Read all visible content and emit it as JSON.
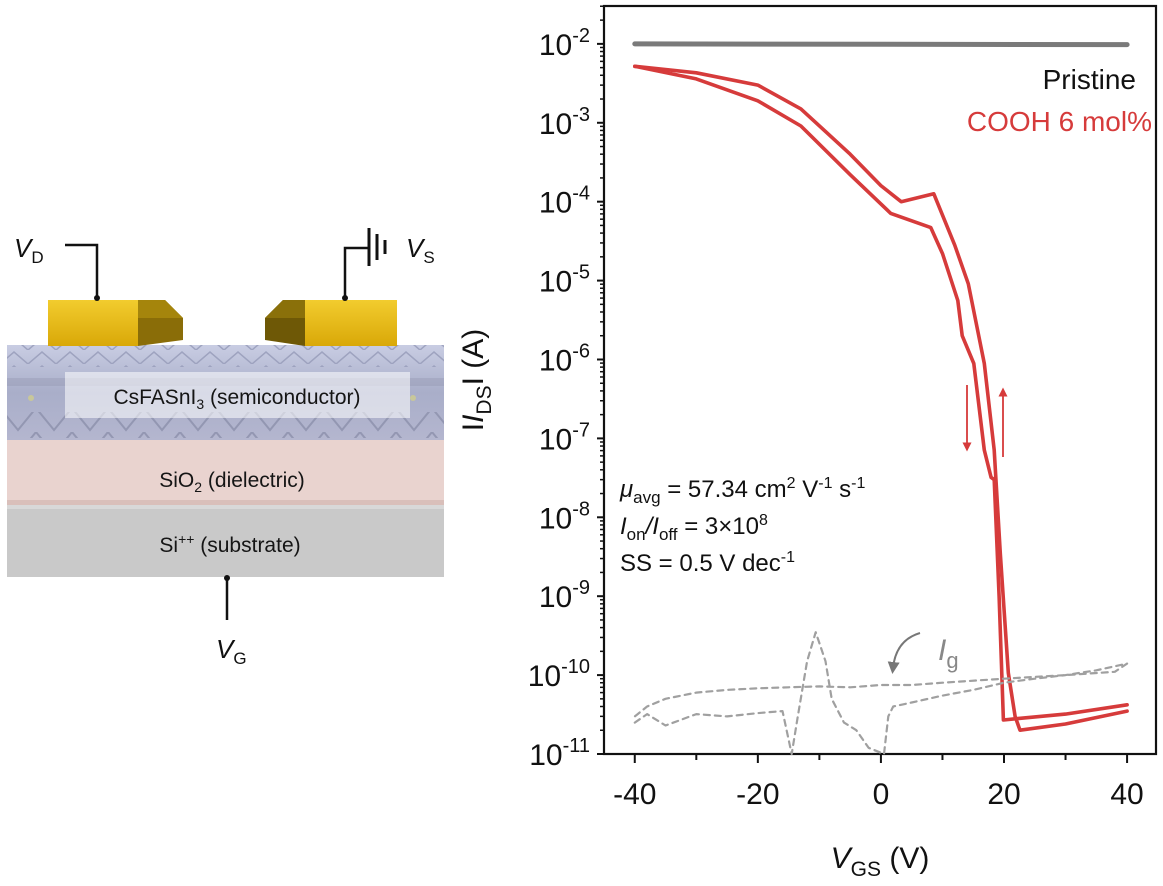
{
  "device_diagram": {
    "terminals": {
      "drain": {
        "symbol": "V",
        "subscript": "D"
      },
      "source": {
        "symbol": "V",
        "subscript": "S"
      },
      "gate": {
        "symbol": "V",
        "subscript": "G"
      }
    },
    "layers": [
      {
        "name": "CsFASnI",
        "subscript": "3",
        "suffix": " (semiconductor)",
        "color": "#b9bdd6"
      },
      {
        "name": "SiO",
        "subscript": "2",
        "suffix": " (dielectric)",
        "color": "#e9d3cf"
      },
      {
        "name": "Si",
        "superscript": "++",
        "suffix": " (substrate)",
        "color": "#c9c9c9"
      }
    ],
    "electrode_color": "#e0b50f"
  },
  "chart_data": {
    "type": "line",
    "title": "",
    "xlabel": {
      "symbol": "V",
      "subscript": "GS",
      "unit": " (V)"
    },
    "ylabel": {
      "prefix": "I",
      "symbol": "I",
      "subscript": "DS",
      "suffix": "I (A)"
    },
    "xlim": [
      -45,
      44.7
    ],
    "ylim_log10": [
      -11,
      -1.52
    ],
    "yscale": "log",
    "grid": false,
    "x_ticks": [
      -40,
      -20,
      0,
      20,
      40
    ],
    "x_tick_labels": [
      "-40",
      "-20",
      "0",
      "20",
      "40"
    ],
    "y_ticks_log10": [
      -2,
      -3,
      -4,
      -5,
      -6,
      -7,
      -8,
      -9,
      -10,
      -11
    ],
    "y_tick_labels": [
      {
        "base": "10",
        "exp": "-2"
      },
      {
        "base": "10",
        "exp": "-3"
      },
      {
        "base": "10",
        "exp": "-4"
      },
      {
        "base": "10",
        "exp": "-5"
      },
      {
        "base": "10",
        "exp": "-6"
      },
      {
        "base": "10",
        "exp": "-7"
      },
      {
        "base": "10",
        "exp": "-8"
      },
      {
        "base": "10",
        "exp": "-9"
      },
      {
        "base": "10",
        "exp": "-10"
      },
      {
        "base": "10",
        "exp": "-11"
      }
    ],
    "legend": {
      "placement": "top-right",
      "entries": [
        {
          "label": "Pristine",
          "color": "#111111"
        },
        {
          "label": "COOH 6 mol%",
          "color": "#d63b3b"
        }
      ]
    },
    "series": [
      {
        "name": "Pristine",
        "color": "#7a7a7a",
        "style": "solid",
        "x": [
          -40,
          40
        ],
        "y": [
          0.01,
          0.0098
        ]
      },
      {
        "name": "COOH 6 mol% (forward sweep)",
        "color": "#d63b3b",
        "style": "solid",
        "x": [
          -40,
          -30,
          -20,
          -13,
          -5,
          0,
          3.3,
          8.6,
          12,
          14.2,
          16.8,
          18.4,
          19.4,
          20.7,
          21.8,
          22.6,
          30,
          40
        ],
        "y": [
          0.0052,
          0.0043,
          0.003,
          0.0015,
          0.0004,
          0.00016,
          0.0001,
          0.000126,
          2.8e-05,
          9.1e-06,
          8.9e-07,
          7.1e-08,
          3.5e-09,
          1.07e-10,
          3e-11,
          2e-11,
          2.4e-11,
          3.5e-11
        ]
      },
      {
        "name": "COOH 6 mol% (reverse sweep)",
        "color": "#d63b3b",
        "style": "solid",
        "x": [
          40,
          30,
          22,
          19.9,
          19.2,
          18.4,
          17.9,
          16.8,
          15.1,
          13.2,
          12.5,
          10,
          8.1,
          1.6,
          -5,
          -13,
          -20,
          -30,
          -40
        ],
        "y": [
          4.2e-11,
          3.2e-11,
          2.8e-11,
          2.7e-11,
          1e-09,
          3e-08,
          3.2e-08,
          7.1e-08,
          8.9e-07,
          2e-06,
          5.6e-06,
          2.2e-05,
          4.7e-05,
          7.1e-05,
          0.00022,
          0.00091,
          0.0019,
          0.0036,
          0.0052
        ]
      },
      {
        "name": "Ig",
        "color": "#a0a0a0",
        "style": "dashed",
        "x": [
          -40,
          -38,
          -35,
          -30,
          -25,
          -20,
          -16,
          -14.5,
          -13.5,
          -12,
          -10.6,
          -9,
          -8,
          -6,
          -4,
          -2,
          0.5,
          1.2,
          2,
          5,
          10,
          15,
          20,
          25,
          30,
          35,
          40,
          38,
          30,
          20,
          10,
          5,
          0,
          -5,
          -10,
          -15,
          -20,
          -25,
          -30,
          -35,
          -38,
          -40
        ],
        "y": [
          2.5e-11,
          3.2e-11,
          2.3e-11,
          3.2e-11,
          3e-11,
          3.3e-11,
          3.5e-11,
          1e-11,
          3e-11,
          1.5e-10,
          3.5e-10,
          1.5e-10,
          5e-11,
          2.5e-11,
          2e-11,
          1.2e-11,
          1e-11,
          3e-11,
          4e-11,
          4.5e-11,
          5.5e-11,
          6.5e-11,
          8e-11,
          9e-11,
          1e-10,
          1.15e-10,
          1.4e-10,
          1.1e-10,
          1e-10,
          9e-11,
          8e-11,
          7.5e-11,
          7.5e-11,
          7e-11,
          7.2e-11,
          7e-11,
          6.8e-11,
          6.5e-11,
          6e-11,
          5e-11,
          4e-11,
          3e-11
        ]
      }
    ],
    "annotations": {
      "mobility": {
        "symbol": "μ",
        "subscript": "avg",
        "text": " = 57.34 cm",
        "sup1": "2",
        "unit2": " V",
        "sup2": "-1",
        "unit3": " s",
        "sup3": "-1"
      },
      "on_off": {
        "sym1": "I",
        "sub1": "on",
        "slash": "/",
        "sym2": "I",
        "sub2": "off",
        "text": " = 3×10",
        "sup": "8"
      },
      "ss": {
        "text": "SS = 0.5 V dec",
        "sup": "-1"
      },
      "ig_label": {
        "symbol": "I",
        "subscript": "g"
      },
      "sweep_arrows": [
        "down",
        "up"
      ]
    }
  }
}
